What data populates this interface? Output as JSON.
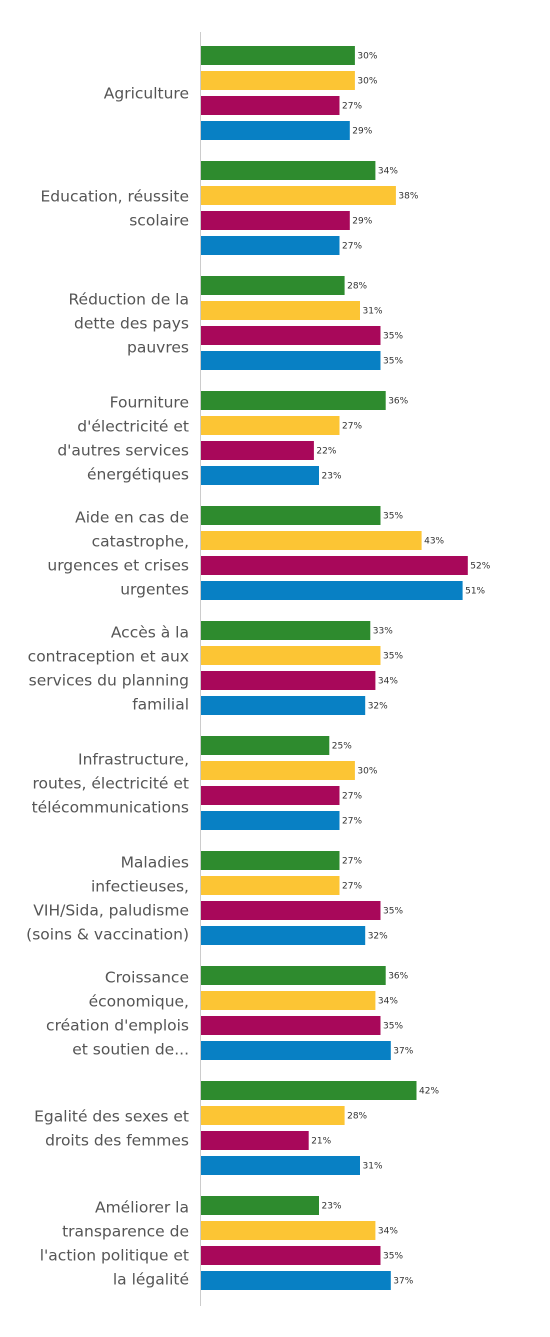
{
  "chart_data": {
    "type": "bar",
    "orientation": "horizontal",
    "title": "",
    "xlabel": "",
    "ylabel": "",
    "xlim": [
      0,
      55
    ],
    "grid": false,
    "legend": "none",
    "value_suffix": "%",
    "categories": [
      [
        "Agriculture"
      ],
      [
        "Education, réussite",
        "scolaire"
      ],
      [
        "Réduction de la",
        "dette des pays",
        "pauvres"
      ],
      [
        "Fourniture",
        "d'électricité et",
        "d'autres services",
        "énergétiques"
      ],
      [
        "Aide en cas de",
        "catastrophe,",
        "urgences et crises",
        "urgentes"
      ],
      [
        "Accès à la",
        "contraception et aux",
        "services du planning",
        "familial"
      ],
      [
        "Infrastructure,",
        "routes, électricité et",
        "télécommunications"
      ],
      [
        "Maladies",
        "infectieuses,",
        "VIH/Sida, paludisme",
        "(soins & vaccination)"
      ],
      [
        "Croissance",
        "économique,",
        "création d'emplois",
        "et soutien de..."
      ],
      [
        "Egalité des sexes et",
        "droits des femmes"
      ],
      [
        "Améliorer la",
        "transparence de",
        "l'action politique et",
        "la légalité"
      ]
    ],
    "series": [
      {
        "color": "#2e8b2e",
        "values": [
          30,
          34,
          28,
          36,
          35,
          33,
          25,
          27,
          36,
          42,
          23
        ]
      },
      {
        "color": "#fcc534",
        "values": [
          30,
          38,
          31,
          27,
          43,
          35,
          30,
          27,
          34,
          28,
          34
        ]
      },
      {
        "color": "#a8085a",
        "values": [
          27,
          29,
          35,
          22,
          52,
          34,
          27,
          35,
          35,
          21,
          35
        ]
      },
      {
        "color": "#0880c4",
        "values": [
          29,
          27,
          35,
          23,
          51,
          32,
          27,
          32,
          37,
          31,
          37
        ]
      }
    ]
  }
}
